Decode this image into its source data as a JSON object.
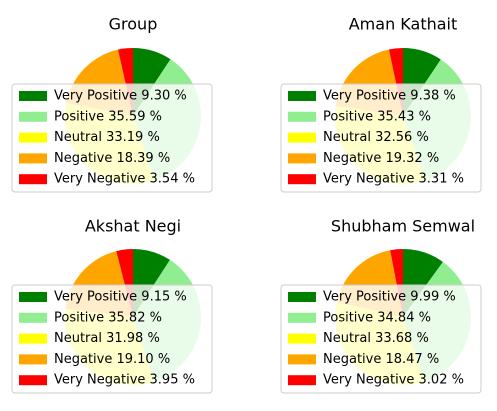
{
  "chart_data": [
    {
      "type": "pie",
      "title": "Group",
      "categories": [
        "Very Positive",
        "Positive",
        "Neutral",
        "Negative",
        "Very Negative"
      ],
      "values": [
        9.3,
        35.59,
        33.19,
        18.39,
        3.54
      ],
      "legend_labels": [
        "Very Positive 9.30 %",
        "Positive 35.59 %",
        "Neutral 33.19 %",
        "Negative 18.39 %",
        "Very Negative 3.54 %"
      ],
      "legend_placement": "lower-left, overlapping pie"
    },
    {
      "type": "pie",
      "title": "Aman Kathait",
      "categories": [
        "Very Positive",
        "Positive",
        "Neutral",
        "Negative",
        "Very Negative"
      ],
      "values": [
        9.38,
        35.43,
        32.56,
        19.32,
        3.31
      ],
      "legend_labels": [
        "Very Positive 9.38 %",
        "Positive 35.43 %",
        "Neutral 32.56 %",
        "Negative 19.32 %",
        "Very Negative 3.31 %"
      ],
      "legend_placement": "lower-left, overlapping pie"
    },
    {
      "type": "pie",
      "title": "Akshat Negi",
      "categories": [
        "Very Positive",
        "Positive",
        "Neutral",
        "Negative",
        "Very Negative"
      ],
      "values": [
        9.15,
        35.82,
        31.98,
        19.1,
        3.95
      ],
      "legend_labels": [
        "Very Positive 9.15 %",
        "Positive 35.82 %",
        "Neutral 31.98 %",
        "Negative 19.10 %",
        "Very Negative 3.95 %"
      ],
      "legend_placement": "lower-left, overlapping pie"
    },
    {
      "type": "pie",
      "title": "Shubham Semwal",
      "categories": [
        "Very Positive",
        "Positive",
        "Neutral",
        "Negative",
        "Very Negative"
      ],
      "values": [
        9.99,
        34.84,
        33.68,
        18.47,
        3.02
      ],
      "legend_labels": [
        "Very Positive 9.99 %",
        "Positive 34.84 %",
        "Neutral 33.68 %",
        "Negative 18.47 %",
        "Very Negative 3.02 %"
      ],
      "legend_placement": "lower-left, overlapping pie"
    }
  ],
  "colors": {
    "Very Positive": "#008000",
    "Positive": "#90ee90",
    "Neutral": "#ffff00",
    "Negative": "#ffa500",
    "Very Negative": "#ff0000"
  },
  "pie_start_angle_deg": 90,
  "pie_direction": "clockwise"
}
